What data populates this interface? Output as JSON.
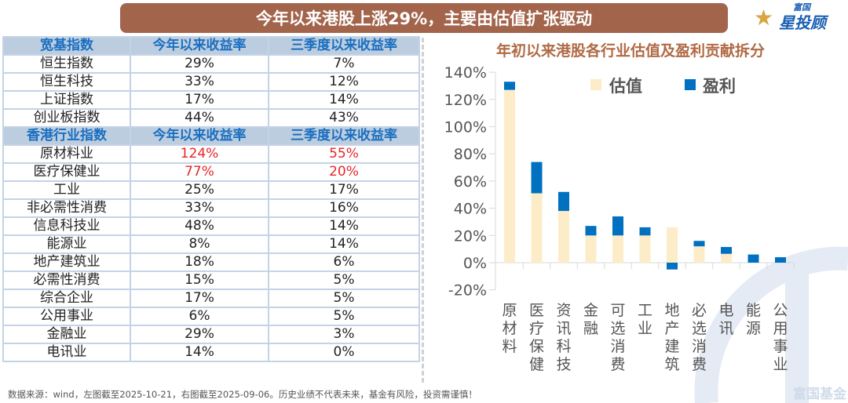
{
  "title": "今年以来港股上涨29%，主要由估值扩张驱动",
  "logo": {
    "small": "富国",
    "big": "星投顾"
  },
  "table": {
    "sections": [
      {
        "header": [
          "宽基指数",
          "今年以来收益率",
          "三季度以来收益率"
        ],
        "rows": [
          [
            "恒生指数",
            "29%",
            "7%"
          ],
          [
            "恒生科技",
            "33%",
            "12%"
          ],
          [
            "上证指数",
            "17%",
            "14%"
          ],
          [
            "创业板指数",
            "44%",
            "43%"
          ]
        ]
      },
      {
        "header": [
          "香港行业指数",
          "今年以来收益率",
          "三季度以来收益率"
        ],
        "rows": [
          [
            "原材料业",
            "124%",
            "55%"
          ],
          [
            "医疗保健业",
            "77%",
            "20%"
          ],
          [
            "工业",
            "25%",
            "17%"
          ],
          [
            "非必需性消费",
            "33%",
            "16%"
          ],
          [
            "信息科技业",
            "48%",
            "14%"
          ],
          [
            "能源业",
            "8%",
            "14%"
          ],
          [
            "地产建筑业",
            "18%",
            "6%"
          ],
          [
            "必需性消费",
            "15%",
            "5%"
          ],
          [
            "综合企业",
            "17%",
            "5%"
          ],
          [
            "公用事业",
            "6%",
            "5%"
          ],
          [
            "金融业",
            "29%",
            "3%"
          ],
          [
            "电讯业",
            "14%",
            "0%"
          ]
        ]
      }
    ],
    "highlight_color": "#e8262a"
  },
  "chart_data": {
    "type": "bar",
    "stacked": true,
    "title": "年初以来港股各行业估值及盈利贡献拆分",
    "categories": [
      "原材料",
      "医疗保健",
      "资讯科技",
      "金融",
      "可选消费",
      "工业",
      "地产建筑",
      "必选消费",
      "电讯",
      "能源",
      "公用事业"
    ],
    "series": [
      {
        "name": "估值",
        "color": "#fdecc8",
        "values": [
          127,
          51,
          38,
          20,
          20,
          20,
          26,
          12,
          6.5,
          0,
          0
        ]
      },
      {
        "name": "盈利",
        "color": "#0070c0",
        "values": [
          6,
          23,
          14,
          7,
          14,
          6,
          -5,
          4,
          5,
          6,
          4
        ]
      }
    ],
    "ylim": [
      -20,
      140
    ],
    "yticks": [
      "-20%",
      "0%",
      "20%",
      "40%",
      "60%",
      "80%",
      "100%",
      "120%",
      "140%"
    ],
    "ytick_values": [
      -20,
      0,
      20,
      40,
      60,
      80,
      100,
      120,
      140
    ],
    "legend": "top-right",
    "watermark": "富国基金"
  },
  "footer": "数据来源：wind，左图截至2025-10-21，右图截至2025-09-06。历史业绩不代表未来，基金有风险，投资需谨慎！"
}
